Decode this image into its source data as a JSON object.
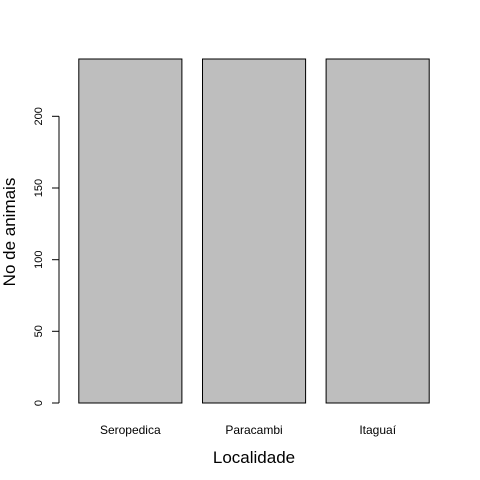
{
  "chart_data": {
    "type": "bar",
    "title": "",
    "xlabel": "Localidade",
    "ylabel": "No de animais",
    "categories": [
      "Seropedica",
      "Paracambi",
      "Itaguaí"
    ],
    "values": [
      240,
      240,
      240
    ],
    "ylim": [
      0,
      240
    ],
    "yticks": [
      0,
      50,
      100,
      150,
      200
    ],
    "grid": false,
    "legend": "none",
    "bar_color": "#bebebe",
    "border_color": "#000000"
  }
}
